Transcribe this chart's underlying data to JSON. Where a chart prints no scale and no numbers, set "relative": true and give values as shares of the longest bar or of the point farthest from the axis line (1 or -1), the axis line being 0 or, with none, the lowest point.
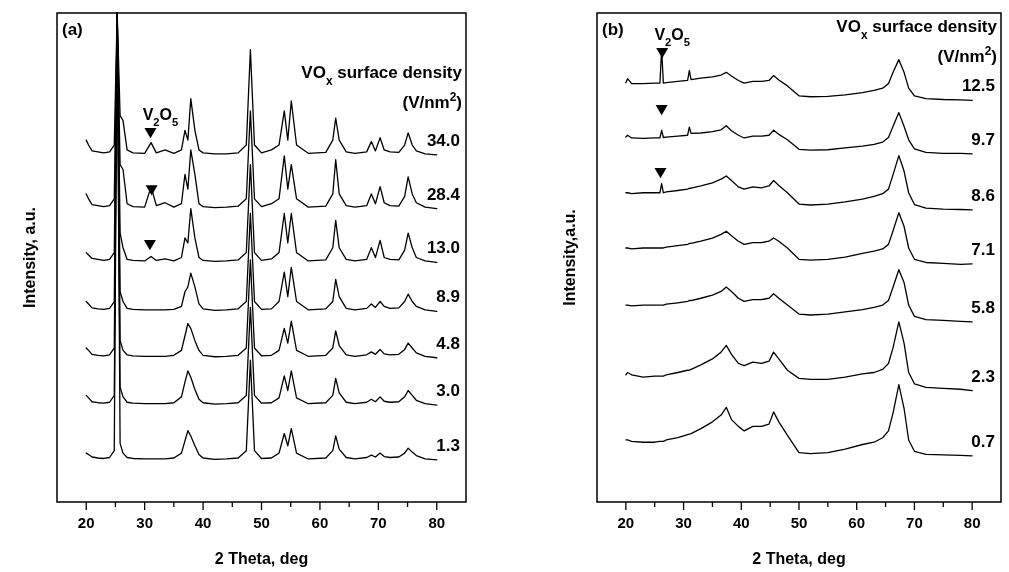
{
  "chart_data": [
    {
      "type": "line",
      "xlabel": "2 Theta, deg",
      "ylabel": "Intensity, a.u.",
      "legend_title": "VO$_{x}$ surface density\n(V/nm$^{2}$)",
      "relative": true,
      "xlim": [
        15,
        85
      ],
      "xticks": [
        20,
        {
          "value": 25,
          "label": null
        },
        30,
        {
          "value": 35,
          "label": null
        },
        40,
        {
          "value": 45,
          "label": null
        },
        50,
        {
          "value": 55,
          "label": null
        },
        60,
        {
          "value": 65,
          "label": null
        },
        70,
        {
          "value": 75,
          "label": null
        },
        80
      ],
      "annotations": [
        "(a)",
        "V$_{2}$O$_{5}$"
      ],
      "x": [
        20,
        20.4,
        21,
        22,
        23,
        24,
        24.8,
        25.3,
        25.8,
        26.3,
        27,
        28,
        30,
        31.1,
        32,
        33.5,
        35,
        36.3,
        36.9,
        37.4,
        37.9,
        38.6,
        39.3,
        40,
        42,
        44,
        46,
        47.4,
        48.1,
        48.8,
        50,
        51.7,
        53,
        53.9,
        54.5,
        55.1,
        56,
        58,
        61,
        62.2,
        62.7,
        63.3,
        64.5,
        66,
        68,
        68.8,
        69.5,
        70.3,
        71,
        72,
        73.5,
        74.5,
        75.1,
        75.8,
        76.5,
        78,
        80
      ],
      "series": [
        {
          "name": "34.0",
          "color": "#000000",
          "values": [
            0.74,
            0.73,
            0.718,
            0.716,
            0.714,
            0.716,
            0.73,
            1,
            0.79,
            0.78,
            0.72,
            0.714,
            0.713,
            0.735,
            0.714,
            0.72,
            0.713,
            0.72,
            0.76,
            0.74,
            0.825,
            0.76,
            0.72,
            0.714,
            0.712,
            0.712,
            0.714,
            0.73,
            0.925,
            0.73,
            0.714,
            0.72,
            0.73,
            0.8,
            0.74,
            0.82,
            0.73,
            0.713,
            0.715,
            0.74,
            0.785,
            0.74,
            0.716,
            0.713,
            0.716,
            0.737,
            0.718,
            0.745,
            0.72,
            0.716,
            0.715,
            0.73,
            0.755,
            0.73,
            0.718,
            0.712,
            0.71
          ]
        },
        {
          "name": "28.4",
          "color": "#000000",
          "values": [
            0.63,
            0.62,
            0.608,
            0.606,
            0.604,
            0.606,
            0.62,
            1,
            0.69,
            0.68,
            0.61,
            0.604,
            0.603,
            0.645,
            0.606,
            0.612,
            0.603,
            0.61,
            0.67,
            0.64,
            0.72,
            0.67,
            0.61,
            0.604,
            0.602,
            0.603,
            0.605,
            0.62,
            0.8,
            0.62,
            0.604,
            0.61,
            0.62,
            0.708,
            0.64,
            0.69,
            0.62,
            0.603,
            0.605,
            0.63,
            0.7,
            0.63,
            0.606,
            0.603,
            0.606,
            0.63,
            0.61,
            0.645,
            0.612,
            0.606,
            0.605,
            0.625,
            0.665,
            0.63,
            0.612,
            0.603,
            0.6
          ]
        },
        {
          "name": "13.0",
          "color": "#000000",
          "values": [
            0.51,
            0.505,
            0.498,
            0.496,
            0.494,
            0.496,
            0.51,
            1,
            0.55,
            0.52,
            0.496,
            0.494,
            0.493,
            0.502,
            0.494,
            0.497,
            0.493,
            0.5,
            0.54,
            0.53,
            0.6,
            0.54,
            0.5,
            0.494,
            0.492,
            0.493,
            0.495,
            0.51,
            0.69,
            0.51,
            0.494,
            0.497,
            0.51,
            0.59,
            0.53,
            0.59,
            0.51,
            0.493,
            0.495,
            0.52,
            0.576,
            0.52,
            0.496,
            0.493,
            0.496,
            0.52,
            0.5,
            0.535,
            0.5,
            0.496,
            0.495,
            0.515,
            0.55,
            0.52,
            0.5,
            0.493,
            0.49
          ]
        },
        {
          "name": "8.9",
          "color": "#000000",
          "values": [
            0.41,
            0.405,
            0.397,
            0.395,
            0.394,
            0.396,
            0.41,
            1,
            0.43,
            0.41,
            0.396,
            0.394,
            0.393,
            0.393,
            0.393,
            0.393,
            0.394,
            0.4,
            0.43,
            0.44,
            0.468,
            0.44,
            0.405,
            0.395,
            0.392,
            0.393,
            0.395,
            0.41,
            0.59,
            0.41,
            0.394,
            0.395,
            0.41,
            0.47,
            0.42,
            0.48,
            0.41,
            0.393,
            0.395,
            0.41,
            0.455,
            0.42,
            0.396,
            0.393,
            0.396,
            0.405,
            0.398,
            0.41,
            0.4,
            0.396,
            0.397,
            0.41,
            0.425,
            0.41,
            0.4,
            0.393,
            0.39
          ]
        },
        {
          "name": "4.8",
          "color": "#000000",
          "values": [
            0.315,
            0.31,
            0.302,
            0.3,
            0.299,
            0.301,
            0.315,
            1,
            0.33,
            0.31,
            0.301,
            0.299,
            0.298,
            0.298,
            0.298,
            0.298,
            0.3,
            0.31,
            0.34,
            0.365,
            0.355,
            0.33,
            0.31,
            0.3,
            0.297,
            0.298,
            0.3,
            0.315,
            0.495,
            0.315,
            0.299,
            0.3,
            0.31,
            0.355,
            0.325,
            0.37,
            0.31,
            0.298,
            0.3,
            0.315,
            0.35,
            0.32,
            0.301,
            0.298,
            0.301,
            0.307,
            0.302,
            0.312,
            0.303,
            0.301,
            0.302,
            0.312,
            0.325,
            0.315,
            0.305,
            0.298,
            0.295
          ]
        },
        {
          "name": "3.0",
          "color": "#000000",
          "values": [
            0.218,
            0.213,
            0.205,
            0.203,
            0.202,
            0.204,
            0.218,
            1,
            0.235,
            0.215,
            0.204,
            0.202,
            0.201,
            0.201,
            0.201,
            0.201,
            0.203,
            0.215,
            0.245,
            0.268,
            0.255,
            0.23,
            0.21,
            0.203,
            0.2,
            0.201,
            0.203,
            0.218,
            0.398,
            0.218,
            0.202,
            0.203,
            0.213,
            0.258,
            0.228,
            0.268,
            0.213,
            0.201,
            0.203,
            0.218,
            0.253,
            0.223,
            0.204,
            0.201,
            0.204,
            0.21,
            0.205,
            0.215,
            0.206,
            0.204,
            0.205,
            0.215,
            0.228,
            0.218,
            0.208,
            0.201,
            0.198
          ]
        },
        {
          "name": "1.3",
          "color": "#000000",
          "values": [
            0.1,
            0.097,
            0.092,
            0.09,
            0.089,
            0.091,
            0.105,
            1,
            0.12,
            0.1,
            0.091,
            0.089,
            0.088,
            0.088,
            0.088,
            0.088,
            0.09,
            0.1,
            0.125,
            0.146,
            0.135,
            0.115,
            0.097,
            0.09,
            0.087,
            0.088,
            0.09,
            0.105,
            0.29,
            0.105,
            0.089,
            0.09,
            0.1,
            0.14,
            0.115,
            0.15,
            0.1,
            0.088,
            0.09,
            0.105,
            0.135,
            0.108,
            0.091,
            0.088,
            0.091,
            0.096,
            0.092,
            0.1,
            0.093,
            0.091,
            0.092,
            0.1,
            0.11,
            0.102,
            0.095,
            0.088,
            0.086
          ]
        },
        {
          "type": "scatter",
          "marker": "triangle",
          "color": "#000000",
          "x": [
            31.0,
            31.2,
            30.9
          ],
          "values": [
            0.755,
            0.638,
            0.526
          ]
        }
      ]
    },
    {
      "type": "line",
      "xlabel": "2 Theta, deg",
      "ylabel": "Intensity,a.u.",
      "legend_title": "VO$_{x}$ surface density\n(V/nm$^{2}$)",
      "relative": true,
      "xlim": [
        15,
        85
      ],
      "xticks": [
        20,
        {
          "value": 25,
          "label": null
        },
        30,
        {
          "value": 35,
          "label": null
        },
        40,
        {
          "value": 45,
          "label": null
        },
        50,
        {
          "value": 55,
          "label": null
        },
        60,
        {
          "value": 65,
          "label": null
        },
        70,
        {
          "value": 75,
          "label": null
        },
        80
      ],
      "annotations": [
        "(b)",
        "V$_{2}$O$_{5}$"
      ],
      "x": [
        20,
        20.3,
        21,
        23,
        25,
        25.9,
        26.2,
        26.5,
        27,
        29,
        30.7,
        31,
        31.3,
        33,
        35,
        36.5,
        37.4,
        38.3,
        39.5,
        40.5,
        42,
        43.5,
        44.8,
        45.6,
        46.5,
        48,
        50,
        52,
        55,
        58,
        61,
        63,
        64.5,
        65.5,
        66.3,
        67.3,
        68.2,
        69,
        70,
        72,
        75,
        78,
        80
      ],
      "series": [
        {
          "name": "12.5",
          "color": "#000000",
          "values": [
            0.926,
            0.935,
            0.924,
            0.924,
            0.925,
            0.925,
            1,
            0.925,
            0.926,
            0.929,
            0.931,
            0.953,
            0.933,
            0.936,
            0.939,
            0.943,
            0.949,
            0.941,
            0.931,
            0.925,
            0.929,
            0.929,
            0.931,
            0.942,
            0.932,
            0.919,
            0.897,
            0.895,
            0.896,
            0.899,
            0.904,
            0.909,
            0.914,
            0.924,
            0.949,
            0.977,
            0.949,
            0.914,
            0.897,
            0.891,
            0.889,
            0.888,
            0.887
          ]
        },
        {
          "name": "9.7",
          "color": "#000000",
          "values": [
            0.806,
            0.81,
            0.804,
            0.803,
            0.804,
            0.804,
            0.821,
            0.805,
            0.806,
            0.808,
            0.81,
            0.828,
            0.814,
            0.815,
            0.818,
            0.822,
            0.831,
            0.82,
            0.81,
            0.804,
            0.808,
            0.808,
            0.81,
            0.821,
            0.812,
            0.8,
            0.779,
            0.777,
            0.778,
            0.782,
            0.786,
            0.79,
            0.795,
            0.805,
            0.83,
            0.86,
            0.83,
            0.8,
            0.78,
            0.772,
            0.77,
            0.77,
            0.769
          ]
        },
        {
          "name": "8.6",
          "color": "#000000",
          "values": [
            0.683,
            0.683,
            0.681,
            0.683,
            0.683,
            0.683,
            0.703,
            0.683,
            0.685,
            0.688,
            0.691,
            0.693,
            0.693,
            0.698,
            0.705,
            0.713,
            0.72,
            0.71,
            0.696,
            0.691,
            0.696,
            0.694,
            0.698,
            0.71,
            0.699,
            0.683,
            0.658,
            0.656,
            0.658,
            0.663,
            0.669,
            0.675,
            0.681,
            0.691,
            0.723,
            0.765,
            0.731,
            0.683,
            0.657,
            0.649,
            0.647,
            0.646,
            0.645
          ]
        },
        {
          "name": "7.1",
          "color": "#000000",
          "values": [
            0.561,
            0.561,
            0.559,
            0.561,
            0.561,
            0.561,
            0.561,
            0.561,
            0.563,
            0.566,
            0.569,
            0.571,
            0.571,
            0.576,
            0.583,
            0.591,
            0.598,
            0.588,
            0.576,
            0.569,
            0.573,
            0.573,
            0.576,
            0.583,
            0.576,
            0.561,
            0.536,
            0.534,
            0.536,
            0.541,
            0.549,
            0.554,
            0.559,
            0.569,
            0.599,
            0.639,
            0.609,
            0.561,
            0.536,
            0.529,
            0.527,
            0.525,
            0.526
          ]
        },
        {
          "name": "5.8",
          "color": "#000000",
          "values": [
            0.435,
            0.435,
            0.433,
            0.435,
            0.435,
            0.435,
            0.435,
            0.435,
            0.437,
            0.44,
            0.443,
            0.445,
            0.445,
            0.45,
            0.457,
            0.465,
            0.475,
            0.465,
            0.45,
            0.443,
            0.447,
            0.447,
            0.45,
            0.46,
            0.45,
            0.435,
            0.415,
            0.413,
            0.415,
            0.42,
            0.425,
            0.43,
            0.435,
            0.445,
            0.475,
            0.513,
            0.485,
            0.435,
            0.41,
            0.403,
            0.401,
            0.399,
            0.398
          ]
        },
        {
          "name": "2.3",
          "color": "#000000",
          "values": [
            0.281,
            0.286,
            0.281,
            0.276,
            0.278,
            0.278,
            0.278,
            0.278,
            0.281,
            0.286,
            0.291,
            0.291,
            0.293,
            0.303,
            0.316,
            0.331,
            0.346,
            0.326,
            0.306,
            0.301,
            0.309,
            0.306,
            0.311,
            0.331,
            0.316,
            0.291,
            0.273,
            0.271,
            0.271,
            0.276,
            0.283,
            0.286,
            0.293,
            0.306,
            0.341,
            0.398,
            0.351,
            0.286,
            0.261,
            0.253,
            0.251,
            0.249,
            0.246
          ]
        },
        {
          "name": "0.7",
          "color": "#000000",
          "values": [
            0.137,
            0.137,
            0.134,
            0.132,
            0.132,
            0.134,
            0.134,
            0.134,
            0.137,
            0.142,
            0.149,
            0.15,
            0.151,
            0.162,
            0.177,
            0.192,
            0.209,
            0.182,
            0.167,
            0.157,
            0.167,
            0.167,
            0.172,
            0.199,
            0.177,
            0.147,
            0.109,
            0.107,
            0.109,
            0.117,
            0.127,
            0.132,
            0.142,
            0.157,
            0.197,
            0.259,
            0.207,
            0.137,
            0.112,
            0.105,
            0.104,
            0.103,
            0.102
          ]
        },
        {
          "type": "scatter",
          "marker": "triangle",
          "color": "#000000",
          "x": [
            26.3,
            26.2,
            26.0
          ],
          "values": [
            0.992,
            0.866,
            0.727
          ]
        }
      ]
    }
  ]
}
